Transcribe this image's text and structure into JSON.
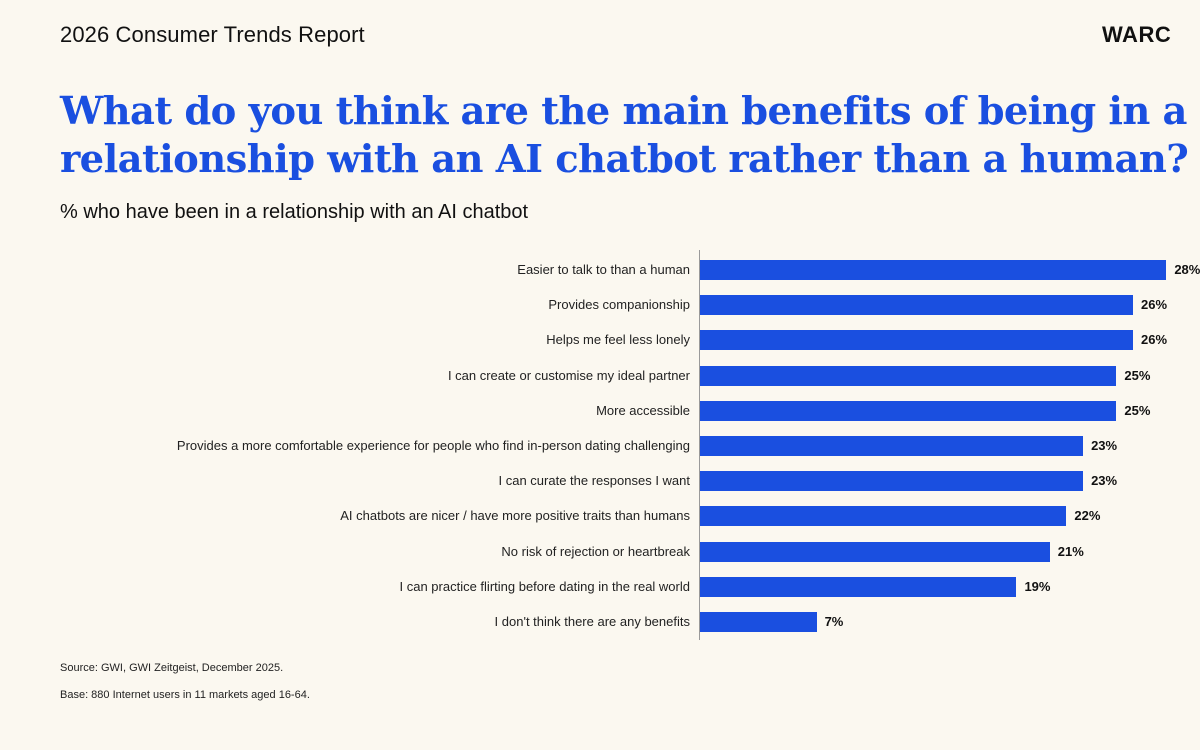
{
  "header": {
    "report_title": "2026 Consumer Trends Report",
    "brand": "WARC"
  },
  "headline": {
    "line1": "What do you think are the main benefits of being in a",
    "line2": "relationship with an AI chatbot rather than a human?"
  },
  "subtitle": "% who have been in a relationship with an AI chatbot",
  "colors": {
    "accent": "#1a4fe0",
    "background": "#fbf8f0",
    "text": "#111111"
  },
  "chart_data": {
    "type": "bar",
    "orientation": "horizontal",
    "categories": [
      "Easier to talk to than a human",
      "Provides companionship",
      "Helps me feel less lonely",
      "I can create or customise my ideal partner",
      "More accessible",
      "Provides a more comfortable experience for people who find in-person dating challenging",
      "I can curate the responses I want",
      "AI chatbots are nicer / have more positive traits than humans",
      "No risk of rejection or heartbreak",
      "I can practice flirting before dating in the real world",
      "I don't think there are any benefits"
    ],
    "values": [
      28,
      26,
      26,
      25,
      25,
      23,
      23,
      22,
      21,
      19,
      7
    ],
    "value_labels": [
      "28%",
      "26%",
      "26%",
      "25%",
      "25%",
      "23%",
      "23%",
      "22%",
      "21%",
      "19%",
      "7%"
    ],
    "unit": "%",
    "xlim": [
      0,
      28.4
    ],
    "grid": false,
    "legend": "none"
  },
  "footer": {
    "source": "Source: GWI, GWI Zeitgeist, December 2025.",
    "base": "Base: 880 Internet users in 11 markets aged 16-64."
  }
}
